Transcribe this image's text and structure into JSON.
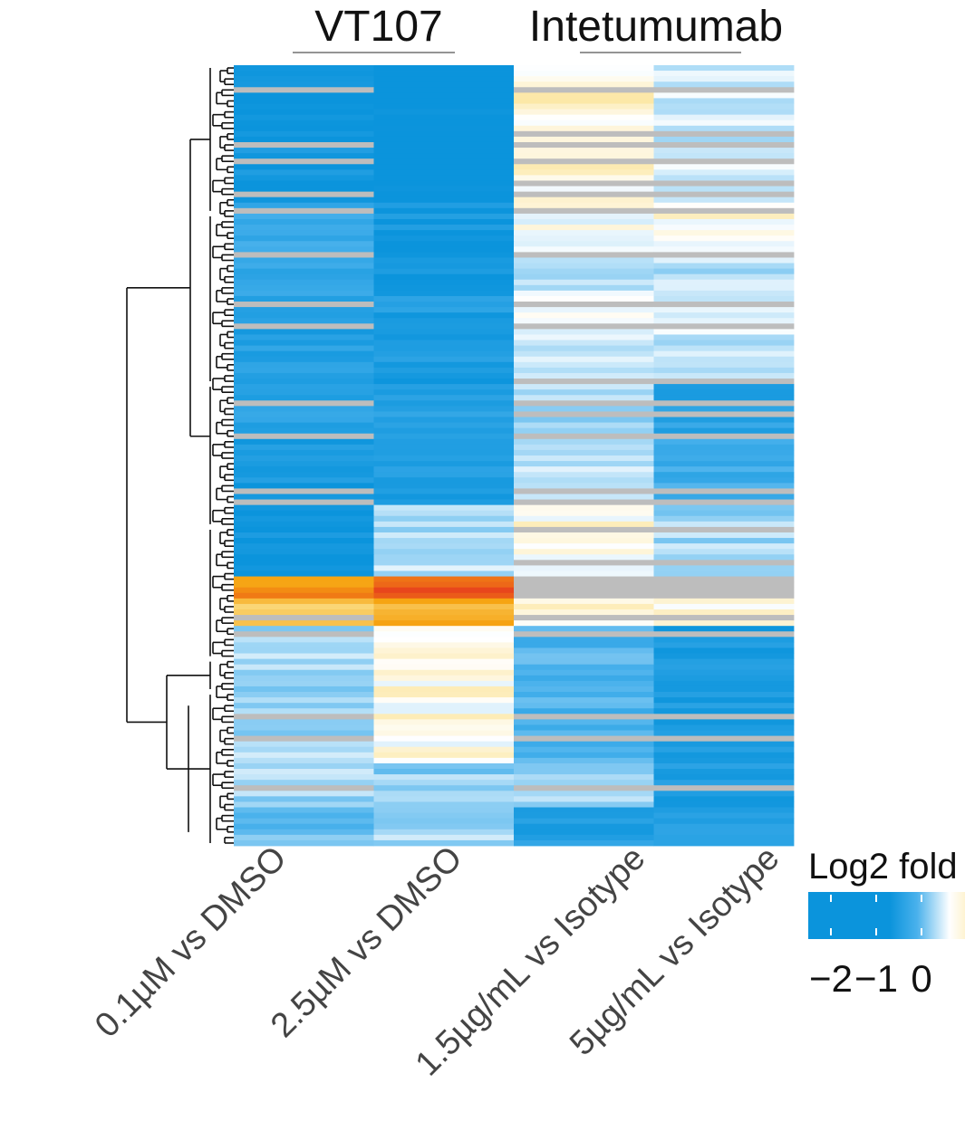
{
  "chart_data": {
    "type": "heatmap",
    "title": "",
    "group_labels": [
      "VT107",
      "Intetumumab"
    ],
    "columns": [
      "0.1µM vs DMSO",
      "2.5µM vs DMSO",
      "1.5µg/mL vs Isotype",
      "5µg/mL vs Isotype"
    ],
    "column_groups": [
      0,
      0,
      1,
      1
    ],
    "legend": {
      "title": "Log2 fold",
      "ticks": [
        -2,
        -1,
        0
      ],
      "tick_labels": [
        "−2",
        "−1",
        "0"
      ],
      "range": [
        -2.5,
        1.5
      ],
      "colors": {
        "neg_strong": "#0b94dc",
        "neg_mid": "#49b1ec",
        "zero": "#ffffff",
        "pos_mid": "#fbe08a",
        "pos_high": "#f6a310",
        "pos_strong": "#e8461c",
        "na": "#bdbdbd"
      }
    },
    "row_count": 142,
    "row_blocks": [
      {
        "rows": 25,
        "values": [
          -1.9,
          -2.2,
          0.2,
          -0.3
        ]
      },
      {
        "rows": 9,
        "values": [
          -1.2,
          -1.8,
          0.0,
          0.15
        ]
      },
      {
        "rows": 8,
        "values": [
          -1.3,
          -1.9,
          -0.3,
          -0.4
        ]
      },
      {
        "rows": 16,
        "values": [
          -1.6,
          -1.7,
          -0.2,
          -0.3
        ]
      },
      {
        "rows": 10,
        "values": [
          -1.5,
          -1.6,
          -0.5,
          -1.5
        ]
      },
      {
        "rows": 12,
        "values": [
          -1.8,
          -1.7,
          -0.3,
          -1.2
        ]
      },
      {
        "rows": 13,
        "values": [
          -1.9,
          -0.4,
          0.1,
          -0.5
        ]
      },
      {
        "rows": 4,
        "values": [
          1.3,
          1.4,
          null,
          null
        ]
      },
      {
        "rows": 5,
        "values": [
          0.7,
          1.0,
          0.2,
          0.1
        ]
      },
      {
        "rows": 25,
        "values": [
          -0.5,
          0.1,
          -1.0,
          -1.7
        ]
      },
      {
        "rows": 8,
        "values": [
          -0.5,
          -0.6,
          -0.6,
          -1.7
        ]
      },
      {
        "rows": 7,
        "values": [
          -0.8,
          -0.5,
          -1.6,
          -1.5
        ]
      }
    ],
    "na_rows": [
      4,
      12,
      14,
      17,
      21,
      23,
      26,
      34,
      43,
      47,
      57,
      61,
      63,
      67,
      77,
      79,
      84,
      90,
      93,
      100,
      103,
      118,
      122,
      131
    ],
    "dendrogram": "rows",
    "grid": false
  }
}
